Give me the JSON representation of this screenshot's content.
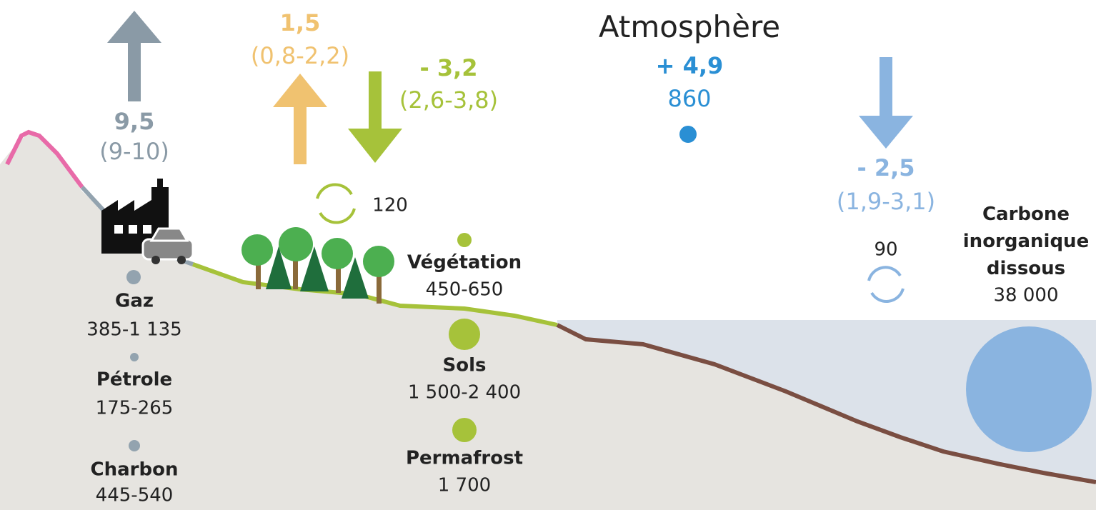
{
  "atmosphere": {
    "title": "Atmosphère",
    "change": "+ 4,9",
    "stock": "860"
  },
  "fluxes": [
    {
      "value": "9,5",
      "range": "(9-10)"
    },
    {
      "value": "1,5",
      "range": "(0,8-2,2)"
    },
    {
      "value": "- 3,2",
      "range": "(2,6-3,8)"
    },
    {
      "value": "- 2,5",
      "range": "(1,9-3,1)"
    }
  ],
  "cycles": [
    {
      "label": "120"
    },
    {
      "label": "90"
    }
  ],
  "stocks": [
    {
      "name": "Gaz",
      "value": "385-1 135"
    },
    {
      "name": "Pétrole",
      "value": "175-265"
    },
    {
      "name": "Charbon",
      "value": "445-540"
    },
    {
      "name": "Végétation",
      "value": "450-650"
    },
    {
      "name": "Sols",
      "value": "1 500-2 400"
    },
    {
      "name": "Permafrost",
      "value": "1 700"
    },
    {
      "name": "Carbone inorganique dissous",
      "value": "38 000"
    }
  ]
}
